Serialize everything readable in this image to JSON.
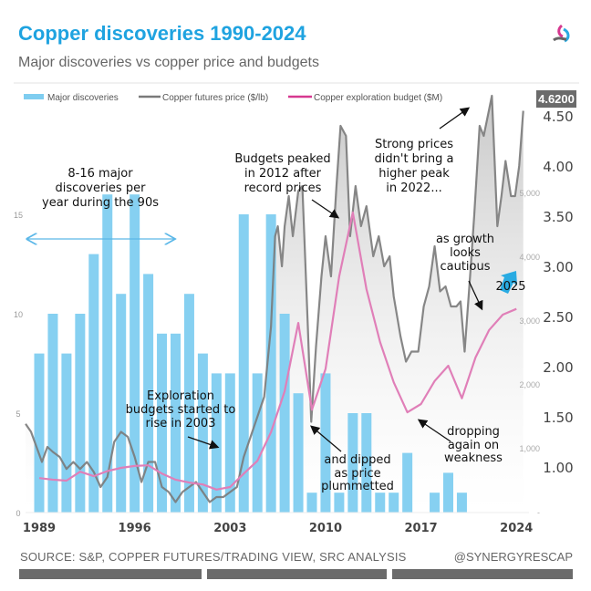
{
  "header": {
    "title": "Copper discoveries 1990-2024",
    "subtitle": "Major discoveries vs copper price and budgets"
  },
  "footer": {
    "source": "SOURCE: S&P, COPPER FUTURES/TRADING VIEW, SRC ANALYSIS",
    "handle": "@SYNERGYRESCAP"
  },
  "colors": {
    "title": "#1fa3e0",
    "bars": "#7fcdf0",
    "price": "#7a7a7a",
    "budget": "#e07fb8",
    "arrow_blue": "#1fa3e0"
  },
  "chart_data": {
    "type": "bar+line",
    "title": "Copper discoveries 1990-2024",
    "legend": [
      "Major discoveries",
      "Copper futures price ($/lb)",
      "Copper exploration budget ($M)"
    ],
    "legend_position": "top",
    "x_ticks": [
      "1989",
      "1996",
      "2003",
      "2010",
      "2017",
      "2024"
    ],
    "left_axis": {
      "ticks": [
        "0",
        "5",
        "10",
        "15"
      ],
      "range": [
        0,
        20
      ]
    },
    "price_axis": {
      "ticks": [
        "1.00",
        "1.50",
        "2.00",
        "2.50",
        "3.00",
        "3.50",
        "4.00",
        "4.50"
      ],
      "range": [
        0.5,
        4.8
      ]
    },
    "budget_axis": {
      "ticks": [
        "-",
        "1,000",
        "2,000",
        "3,000",
        "4,000",
        "5,000"
      ],
      "range": [
        0,
        6400
      ]
    },
    "last_price_label": "4.6200",
    "discoveries": {
      "name": "Major discoveries",
      "years": [
        1989,
        1990,
        1991,
        1992,
        1993,
        1994,
        1995,
        1996,
        1997,
        1998,
        1999,
        2000,
        2001,
        2002,
        2003,
        2004,
        2005,
        2006,
        2007,
        2008,
        2009,
        2010,
        2011,
        2012,
        2013,
        2014,
        2015,
        2016,
        2017,
        2018,
        2019,
        2020
      ],
      "values": [
        8,
        10,
        8,
        10,
        13,
        16,
        11,
        16,
        12,
        9,
        9,
        11,
        8,
        7,
        7,
        15,
        7,
        15,
        10,
        6,
        1,
        7,
        1,
        5,
        5,
        1,
        1,
        3,
        0,
        1,
        2,
        1
      ]
    },
    "price": {
      "name": "Copper futures price ($/lb)",
      "x": [
        1988.0,
        1988.4,
        1988.8,
        1989.2,
        1989.6,
        1990.0,
        1990.5,
        1991.0,
        1991.5,
        1992.0,
        1992.5,
        1993.0,
        1993.5,
        1994.0,
        1994.5,
        1995.0,
        1995.5,
        1996.0,
        1996.5,
        1997.0,
        1997.5,
        1998.0,
        1998.5,
        1999.0,
        1999.5,
        2000.0,
        2000.5,
        2001.0,
        2001.5,
        2002.0,
        2002.5,
        2003.0,
        2003.5,
        2004.0,
        2004.5,
        2005.0,
        2005.5,
        2006.0,
        2006.3,
        2006.5,
        2006.8,
        2007.0,
        2007.3,
        2007.6,
        2008.0,
        2008.3,
        2008.7,
        2008.95,
        2009.3,
        2009.7,
        2010.0,
        2010.4,
        2010.8,
        2011.1,
        2011.5,
        2011.8,
        2012.2,
        2012.6,
        2013.0,
        2013.5,
        2013.9,
        2014.3,
        2014.7,
        2015.0,
        2015.5,
        2015.9,
        2016.3,
        2016.8,
        2017.2,
        2017.6,
        2018.0,
        2018.4,
        2018.8,
        2019.2,
        2019.6,
        2019.9,
        2020.2,
        2020.6,
        2020.9,
        2021.3,
        2021.6,
        2022.2,
        2022.6,
        2022.9,
        2023.2,
        2023.6,
        2023.9,
        2024.2,
        2024.5
      ],
      "values": [
        1.43,
        1.35,
        1.2,
        1.05,
        1.2,
        1.15,
        1.1,
        0.98,
        1.05,
        0.98,
        1.05,
        0.95,
        0.8,
        0.9,
        1.25,
        1.35,
        1.3,
        1.1,
        0.85,
        1.05,
        1.05,
        0.8,
        0.75,
        0.65,
        0.75,
        0.8,
        0.85,
        0.75,
        0.65,
        0.7,
        0.7,
        0.75,
        0.8,
        1.1,
        1.3,
        1.5,
        1.7,
        2.4,
        3.3,
        3.4,
        3.0,
        3.4,
        3.7,
        3.3,
        3.75,
        3.8,
        2.4,
        1.45,
        2.2,
        2.9,
        3.3,
        2.9,
        3.8,
        4.4,
        4.3,
        3.3,
        3.8,
        3.4,
        3.6,
        3.1,
        3.3,
        3.0,
        3.1,
        2.7,
        2.3,
        2.05,
        2.15,
        2.15,
        2.6,
        2.8,
        3.2,
        2.75,
        2.8,
        2.6,
        2.6,
        2.65,
        2.15,
        2.9,
        3.5,
        4.4,
        4.3,
        4.7,
        3.4,
        3.7,
        4.05,
        3.7,
        3.7,
        4.0,
        4.55
      ]
    },
    "budget": {
      "name": "Copper exploration budget ($M)",
      "years": [
        1989,
        1990,
        1991,
        1992,
        1993,
        1994,
        1995,
        1996,
        1997,
        1998,
        1999,
        2000,
        2001,
        2002,
        2003,
        2004,
        2005,
        2006,
        2007,
        2008,
        2009,
        2010,
        2011,
        2012,
        2013,
        2014,
        2015,
        2016,
        2017,
        2018,
        2019,
        2020,
        2021,
        2022,
        2023,
        2024
      ],
      "values": [
        540,
        515,
        500,
        640,
        570,
        650,
        700,
        730,
        740,
        610,
        515,
        470,
        440,
        360,
        400,
        610,
        810,
        1260,
        1900,
        2970,
        1610,
        2250,
        3700,
        4700,
        3500,
        2670,
        2040,
        1570,
        1700,
        2060,
        2300,
        1790,
        2430,
        2860,
        3100,
        3190
      ]
    },
    "annotations": {
      "nineties": [
        "8-16 major",
        "discoveries per",
        "year during the 90s"
      ],
      "peak2012": [
        "Budgets peaked",
        "in 2012 after",
        "record prices"
      ],
      "strong": [
        "Strong prices",
        "didn't bring a",
        "higher peak",
        "in 2022..."
      ],
      "growth": [
        "as growth",
        "looks",
        "cautious"
      ],
      "year2025": "2025",
      "rise2003": [
        "Exploration",
        "budgets started to",
        "rise in 2003"
      ],
      "dipped": [
        "and dipped",
        "as price",
        "plummetted"
      ],
      "dropping": [
        "dropping",
        "again on",
        "weakness"
      ]
    }
  }
}
